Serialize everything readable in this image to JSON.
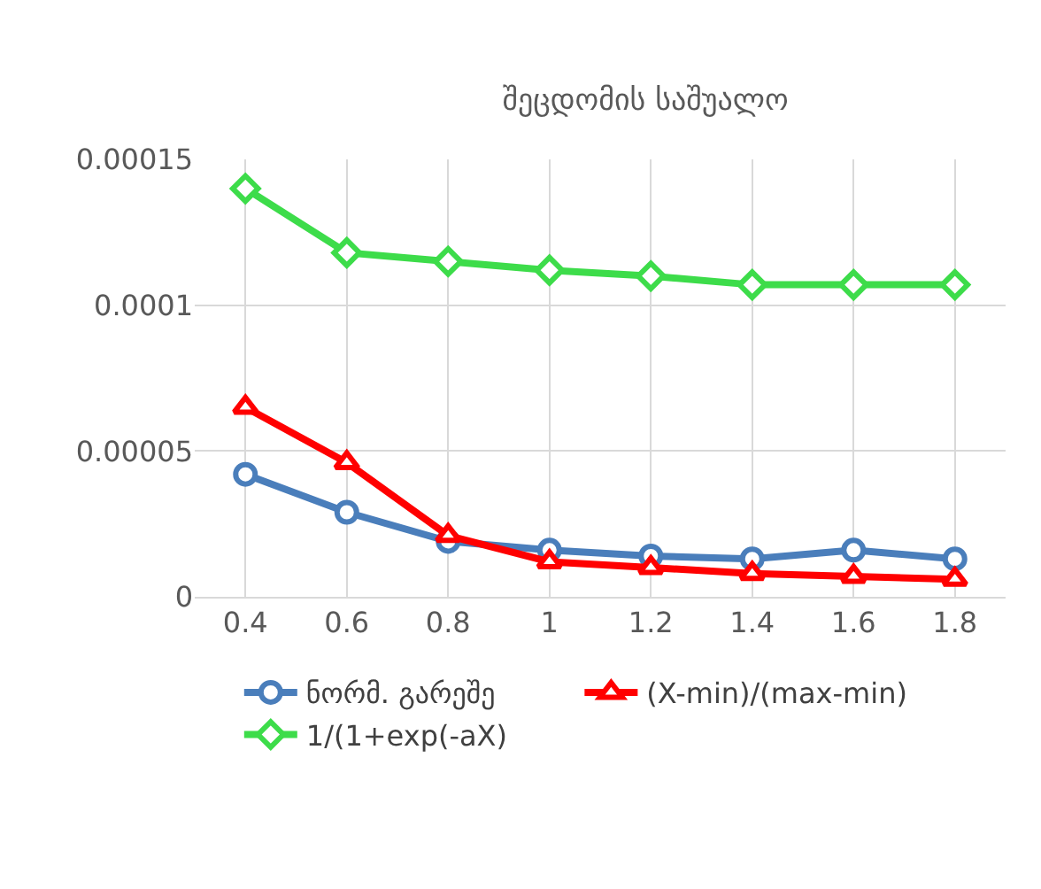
{
  "chart_data": {
    "type": "line",
    "title": "შეცდომის საშუალო",
    "categories": [
      "0.4",
      "0.6",
      "0.8",
      "1",
      "1.2",
      "1.4",
      "1.6",
      "1.8"
    ],
    "series": [
      {
        "name": "ნორმ. გარეშე",
        "color": "#4a7ebb",
        "marker": "circle",
        "values": [
          4.2e-05,
          2.9e-05,
          1.9e-05,
          1.6e-05,
          1.4e-05,
          1.3e-05,
          1.6e-05,
          1.3e-05
        ]
      },
      {
        "name": "(X-min)/(max-min)",
        "color": "#ff0000",
        "marker": "triangle",
        "values": [
          6.5e-05,
          4.6e-05,
          2.1e-05,
          1.2e-05,
          1e-05,
          8e-06,
          7e-06,
          6e-06
        ]
      },
      {
        "name": "1/(1+exp(-aX)",
        "color": "#3ddc4a",
        "marker": "diamond",
        "values": [
          0.00014,
          0.000118,
          0.000115,
          0.000112,
          0.00011,
          0.000107,
          0.000107,
          0.000107
        ]
      }
    ],
    "ylim": [
      0,
      0.00015
    ],
    "yticks": [
      0,
      {
        "value": 5e-05,
        "label": "0.00005"
      },
      0.0001,
      0.00015
    ],
    "grid": true,
    "legend": "bottom"
  }
}
